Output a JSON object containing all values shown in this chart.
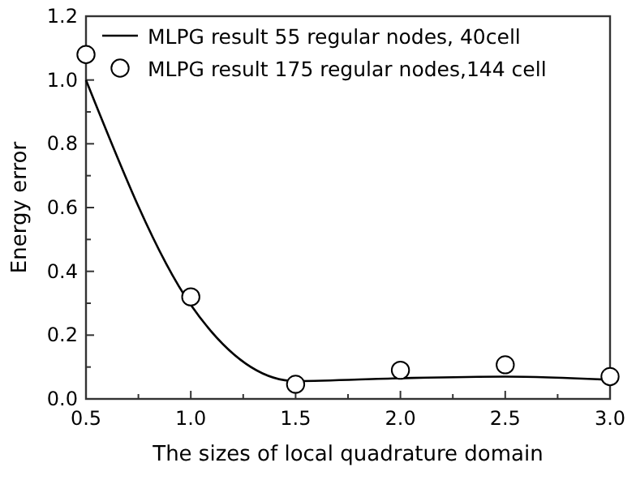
{
  "chart_data": {
    "type": "line",
    "xlabel": "The sizes of local quadrature domain",
    "ylabel": "Energy error",
    "x": [
      0.5,
      1.0,
      1.5,
      2.0,
      2.5,
      3.0
    ],
    "series": [
      {
        "name": "MLPG result  55 regular nodes, 40cell",
        "color": "#000000",
        "values": [
          1.0,
          0.295,
          0.056,
          0.065,
          0.07,
          0.06
        ],
        "marker": "none",
        "line_style": "solid"
      },
      {
        "name": "MLPG result 175 regular nodes,144 cell",
        "type": "scatter",
        "color": "#000000",
        "values": [
          1.08,
          0.32,
          0.046,
          0.09,
          0.107,
          0.07
        ],
        "marker": "circle"
      }
    ],
    "xlim": [
      0.5,
      3.0
    ],
    "xticks": [
      {
        "value": 0.5,
        "label": "0.5"
      },
      {
        "value": 1.0,
        "label": "1.0"
      },
      {
        "value": 1.5,
        "label": "1.5"
      },
      {
        "value": 2.0,
        "label": "2.0"
      },
      {
        "value": 2.5,
        "label": "2.5"
      },
      {
        "value": 3.0,
        "label": "3.0"
      }
    ],
    "ylim": [
      0,
      1.2
    ],
    "yticks": [
      {
        "value": 0,
        "label": "0.0"
      },
      {
        "value": 0.2,
        "label": "0.2"
      },
      {
        "value": 0.4,
        "label": "0.4"
      },
      {
        "value": 0.6,
        "label": "0.6"
      },
      {
        "value": 0.8,
        "label": "0.8"
      },
      {
        "value": 1.0,
        "label": "1.0"
      },
      {
        "value": 1.2,
        "label": "1.2"
      }
    ],
    "grid": false,
    "legend": "top left"
  }
}
